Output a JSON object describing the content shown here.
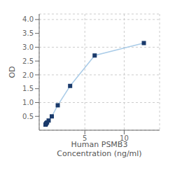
{
  "chart_data": {
    "type": "line",
    "x": [
      0,
      0.05,
      0.1,
      0.2,
      0.4,
      0.8,
      1.56,
      3.13,
      6.25,
      12.5
    ],
    "values": [
      0.2,
      0.22,
      0.25,
      0.28,
      0.35,
      0.5,
      0.9,
      1.6,
      2.7,
      3.15
    ],
    "color": "#aacce8",
    "colors": [
      "#1a3a6b",
      "#1a3a6b",
      "#1a3a6b",
      "#1a3a6b",
      "#1a3a6b",
      "#1a3a6b",
      "#1a3a6b",
      "#1a3a6b",
      "#1a3a6b",
      "#1a3a6b"
    ],
    "marker": "square",
    "xlabel": "Human PSMB3\nConcentration (ng/ml)",
    "ylabel": "OD",
    "xlim": [
      -0.8,
      14.5
    ],
    "ylim": [
      0.0,
      4.2
    ],
    "xticks": [
      5,
      10
    ],
    "yticks": [
      0.5,
      {
        "value": 1.0,
        "label": "1.0"
      },
      1.5,
      {
        "value": 2.0,
        "label": "2.0"
      },
      2.5,
      {
        "value": 3.0,
        "label": "3.0"
      },
      3.5,
      {
        "value": 4.0,
        "label": "4.0"
      }
    ],
    "grid": true
  }
}
